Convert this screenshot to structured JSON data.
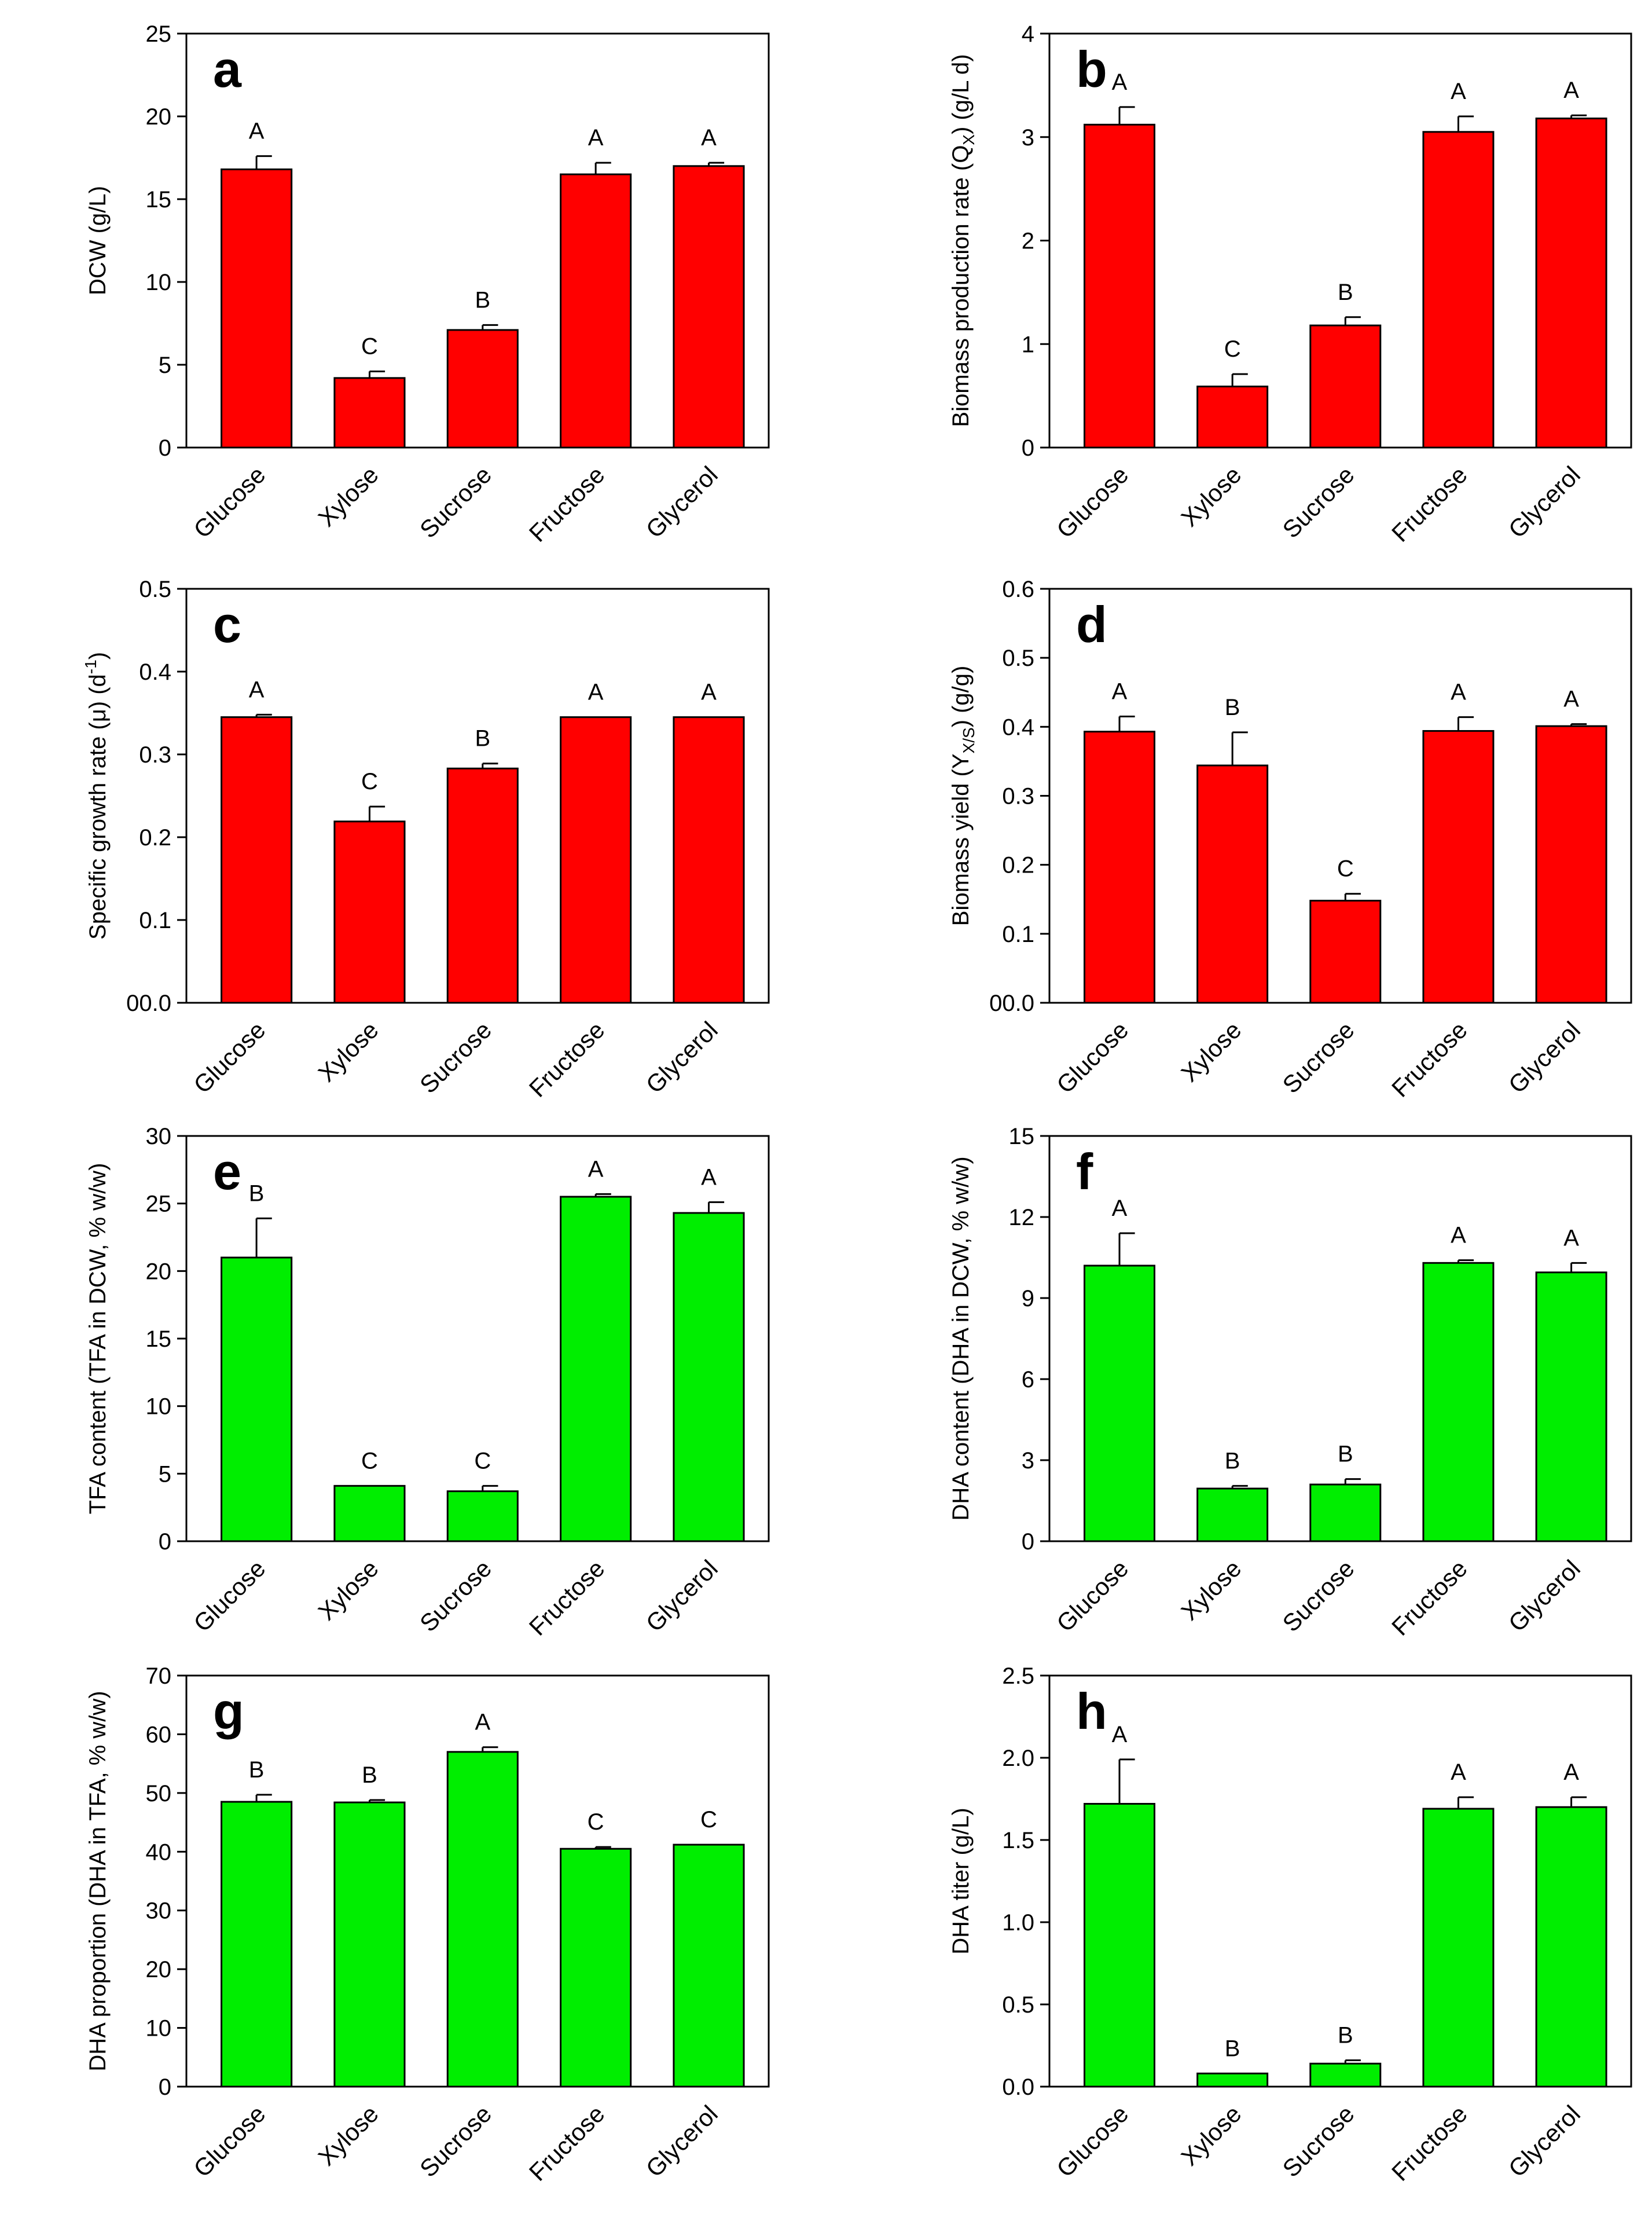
{
  "chart_data": [
    {
      "panel": "a",
      "type": "bar",
      "categories": [
        "Glucose",
        "Xylose",
        "Sucrose",
        "Fructose",
        "Glycerol"
      ],
      "values": [
        16.8,
        4.2,
        7.1,
        16.5,
        17.0
      ],
      "errors": [
        0.8,
        0.4,
        0.3,
        0.7,
        0.2
      ],
      "significance": [
        "A",
        "C",
        "B",
        "A",
        "A"
      ],
      "ylabel": "DCW (g/L)",
      "ylim": [
        0,
        25
      ],
      "yticks": [
        0,
        5,
        10,
        15,
        20,
        25
      ],
      "ytick_labels": [
        "0",
        "5",
        "10",
        "15",
        "20",
        "25"
      ],
      "color": "#ff0000"
    },
    {
      "panel": "b",
      "type": "bar",
      "categories": [
        "Glucose",
        "Xylose",
        "Sucrose",
        "Fructose",
        "Glycerol"
      ],
      "values": [
        3.12,
        0.59,
        1.18,
        3.05,
        3.18
      ],
      "errors": [
        0.17,
        0.12,
        0.08,
        0.15,
        0.03
      ],
      "significance": [
        "A",
        "C",
        "B",
        "A",
        "A"
      ],
      "ylabel": "Biomass production rate (Q",
      "ylabel_subscript": "X",
      "ylabel_suffix": ") (g/L d)",
      "ylim": [
        0,
        4
      ],
      "yticks": [
        0,
        1,
        2,
        3,
        4
      ],
      "ytick_labels": [
        "0",
        "1",
        "2",
        "3",
        "4"
      ],
      "color": "#ff0000"
    },
    {
      "panel": "c",
      "type": "bar",
      "categories": [
        "Glucose",
        "Xylose",
        "Sucrose",
        "Fructose",
        "Glycerol"
      ],
      "values": [
        0.345,
        0.219,
        0.283,
        0.345,
        0.345
      ],
      "errors": [
        0.003,
        0.018,
        0.006,
        0.0,
        0.0
      ],
      "significance": [
        "A",
        "C",
        "B",
        "A",
        "A"
      ],
      "ylabel": "Specific growth rate (μ) (d",
      "ylabel_superscript": "-1",
      "ylabel_suffix": ")",
      "ylim": [
        0,
        0.5
      ],
      "yticks": [
        0,
        0.1,
        0.2,
        0.3,
        0.4,
        0.5
      ],
      "ytick_labels": [
        "00.0",
        "0.1",
        "0.2",
        "0.3",
        "0.4",
        "0.5"
      ],
      "color": "#ff0000"
    },
    {
      "panel": "d",
      "type": "bar",
      "categories": [
        "Glucose",
        "Xylose",
        "Sucrose",
        "Fructose",
        "Glycerol"
      ],
      "values": [
        0.393,
        0.344,
        0.148,
        0.394,
        0.401
      ],
      "errors": [
        0.022,
        0.048,
        0.01,
        0.02,
        0.003
      ],
      "significance": [
        "A",
        "B",
        "C",
        "A",
        "A"
      ],
      "ylabel": "Biomass yield (Y",
      "ylabel_subscript": "X/S",
      "ylabel_suffix": ") (g/g)",
      "ylim": [
        0,
        0.6
      ],
      "yticks": [
        0,
        0.1,
        0.2,
        0.3,
        0.4,
        0.5,
        0.6
      ],
      "ytick_labels": [
        "00.0",
        "0.1",
        "0.2",
        "0.3",
        "0.4",
        "0.5",
        "0.6"
      ],
      "color": "#ff0000"
    },
    {
      "panel": "e",
      "type": "bar",
      "categories": [
        "Glucose",
        "Xylose",
        "Sucrose",
        "Fructose",
        "Glycerol"
      ],
      "values": [
        21.0,
        4.1,
        3.7,
        25.5,
        24.3
      ],
      "errors": [
        2.9,
        0.0,
        0.4,
        0.2,
        0.8
      ],
      "significance": [
        "B",
        "C",
        "C",
        "A",
        "A"
      ],
      "ylabel": "TFA content (TFA in DCW, % w/w)",
      "ylim": [
        0,
        30
      ],
      "yticks": [
        0,
        5,
        10,
        15,
        20,
        25,
        30
      ],
      "ytick_labels": [
        "0",
        "5",
        "10",
        "15",
        "20",
        "25",
        "30"
      ],
      "color": "#00ee00"
    },
    {
      "panel": "f",
      "type": "bar",
      "categories": [
        "Glucose",
        "Xylose",
        "Sucrose",
        "Fructose",
        "Glycerol"
      ],
      "values": [
        10.2,
        1.95,
        2.1,
        10.3,
        9.95
      ],
      "errors": [
        1.2,
        0.1,
        0.2,
        0.1,
        0.35
      ],
      "significance": [
        "A",
        "B",
        "B",
        "A",
        "A"
      ],
      "ylabel": "DHA content (DHA in DCW, % w/w)",
      "ylim": [
        0,
        15
      ],
      "yticks": [
        0,
        3,
        6,
        9,
        12,
        15
      ],
      "ytick_labels": [
        "0",
        "3",
        "6",
        "9",
        "12",
        "15"
      ],
      "color": "#00ee00"
    },
    {
      "panel": "g",
      "type": "bar",
      "categories": [
        "Glucose",
        "Xylose",
        "Sucrose",
        "Fructose",
        "Glycerol"
      ],
      "values": [
        48.5,
        48.4,
        57.0,
        40.5,
        41.2
      ],
      "errors": [
        1.2,
        0.4,
        0.8,
        0.3,
        0.0
      ],
      "significance": [
        "B",
        "B",
        "A",
        "C",
        "C"
      ],
      "ylabel": "DHA  proportion (DHA  in TFA, % w/w)",
      "ylim": [
        0,
        70
      ],
      "yticks": [
        0,
        10,
        20,
        30,
        40,
        50,
        60,
        70
      ],
      "ytick_labels": [
        "0",
        "10",
        "20",
        "30",
        "40",
        "50",
        "60",
        "70"
      ],
      "color": "#00ee00"
    },
    {
      "panel": "h",
      "type": "bar",
      "categories": [
        "Glucose",
        "Xylose",
        "Sucrose",
        "Fructose",
        "Glycerol"
      ],
      "values": [
        1.72,
        0.08,
        0.14,
        1.69,
        1.7
      ],
      "errors": [
        0.27,
        0.0,
        0.02,
        0.07,
        0.06
      ],
      "significance": [
        "A",
        "B",
        "B",
        "A",
        "A"
      ],
      "ylabel": "DHA titer (g/L)",
      "ylim": [
        0,
        2.5
      ],
      "yticks": [
        0,
        0.5,
        1.0,
        1.5,
        2.0,
        2.5
      ],
      "ytick_labels": [
        "0.0",
        "0.5",
        "1.0",
        "1.5",
        "2.0",
        "2.5"
      ],
      "color": "#00ee00"
    }
  ]
}
